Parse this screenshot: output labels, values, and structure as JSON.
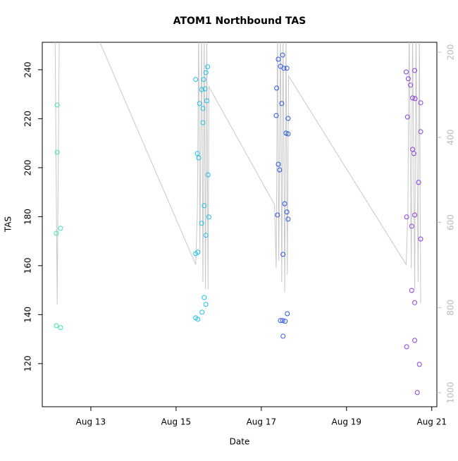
{
  "chart_data": {
    "type": "scatter",
    "title": "ATOM1 Northbound TAS",
    "x_label": "Date",
    "y_label": "TAS",
    "xlim": [
      11.86,
      21.12
    ],
    "xticks": [
      {
        "value": 13,
        "label": "Aug 13"
      },
      {
        "value": 15,
        "label": "Aug 15"
      },
      {
        "value": 17,
        "label": "Aug 17"
      },
      {
        "value": 19,
        "label": "Aug 19"
      },
      {
        "value": 21,
        "label": "Aug 21"
      }
    ],
    "ylim": [
      102.4,
      251.2
    ],
    "yticks": [
      120,
      140,
      160,
      180,
      200,
      220,
      240
    ],
    "y2lim": [
      1033,
      176.8
    ],
    "y2ticks": [
      200,
      400,
      600,
      800,
      1000
    ],
    "series": [
      {
        "color": "#3fe0b0",
        "x": [
          12.21,
          12.21,
          12.19,
          12.29,
          12.19,
          12.29
        ],
        "values": [
          225.6,
          206.3,
          173.2,
          175.3,
          135.5,
          134.7
        ]
      },
      {
        "color": "#1cc0e8",
        "x": [
          15.46,
          15.5,
          15.53,
          15.55,
          15.6,
          15.63,
          15.63,
          15.65,
          15.68,
          15.66,
          15.6,
          15.7,
          15.74,
          15.72,
          15.75,
          15.77,
          15.7,
          15.51,
          15.46,
          15.66,
          15.7,
          15.61,
          15.46,
          15.51
        ],
        "values": [
          236.0,
          205.8,
          204.0,
          226.2,
          231.9,
          218.4,
          224.2,
          236.0,
          232.2,
          184.5,
          177.3,
          238.8,
          241.2,
          227.3,
          197.1,
          179.9,
          172.4,
          165.5,
          164.9,
          147.0,
          144.2,
          141.0,
          138.7,
          138.1
        ]
      },
      {
        "color": "#2a55e0",
        "x": [
          17.4,
          17.5,
          17.45,
          17.53,
          17.6,
          17.36,
          17.48,
          17.35,
          17.63,
          17.58,
          17.63,
          17.4,
          17.43,
          17.55,
          17.6,
          17.38,
          17.63,
          17.51,
          17.61,
          17.45,
          17.5,
          17.56,
          17.51
        ],
        "values": [
          244.3,
          246.0,
          241.4,
          240.6,
          240.6,
          232.5,
          226.2,
          221.3,
          220.1,
          214.1,
          213.8,
          201.4,
          199.1,
          185.3,
          181.9,
          180.7,
          179.0,
          164.6,
          140.4,
          137.6,
          137.6,
          137.3,
          131.2
        ]
      },
      {
        "color": "#8a3ce0",
        "x": [
          20.4,
          20.6,
          20.45,
          20.5,
          20.55,
          20.61,
          20.74,
          20.43,
          20.74,
          20.55,
          20.58,
          20.69,
          20.41,
          20.6,
          20.53,
          20.74,
          20.53,
          20.6,
          20.41,
          20.6,
          20.71,
          20.66
        ],
        "values": [
          239.1,
          239.7,
          236.3,
          233.7,
          228.5,
          228.2,
          226.5,
          220.7,
          214.7,
          207.5,
          205.8,
          194.0,
          179.9,
          180.7,
          176.1,
          170.9,
          149.9,
          144.9,
          126.9,
          129.5,
          119.7,
          108.2
        ]
      },
      {
        "type": "line",
        "axis": "y2",
        "color": "#c8c8c8",
        "x": [
          12.16,
          12.21,
          12.26,
          12.29,
          13.07,
          15.46,
          15.5,
          15.53,
          15.56,
          15.6,
          15.63,
          15.66,
          15.69,
          15.72,
          15.75,
          15.77,
          17.31,
          17.35,
          17.38,
          17.41,
          17.45,
          17.48,
          17.51,
          17.55,
          17.58,
          17.61,
          17.64,
          20.4,
          20.44,
          20.47,
          20.52,
          20.55,
          20.6,
          20.63,
          20.68,
          20.71,
          20.74
        ],
        "values": [
          144,
          793,
          144,
          144,
          144,
          699,
          574,
          144,
          674,
          144,
          740,
          144,
          757,
          144,
          757,
          281,
          558,
          707,
          144,
          690,
          144,
          740,
          144,
          765,
          144,
          723,
          256,
          699,
          574,
          144,
          707,
          144,
          757,
          144,
          740,
          144,
          790
        ]
      }
    ]
  }
}
